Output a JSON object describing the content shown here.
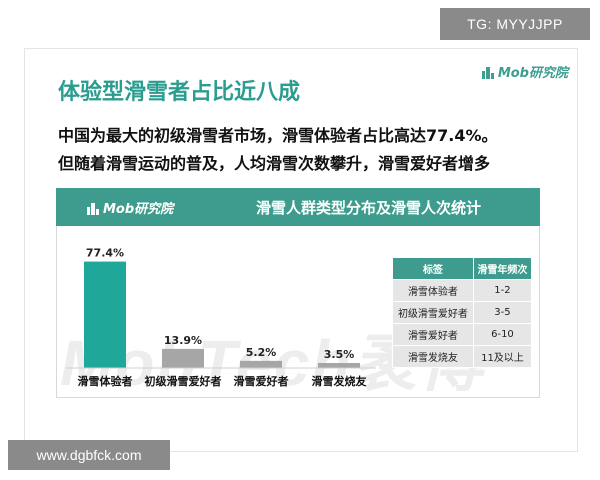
{
  "watermark_top": "TG: MYYJJPP",
  "watermark_bottom": "www.dgbfck.com",
  "logo_text": "Mob研究院",
  "background_watermark": "MobTech袤博",
  "slide": {
    "title": "体验型滑雪者占比近八成",
    "subtitle_line1": "中国为最大的初级滑雪者市场，滑雪体验者占比高达77.4%。",
    "subtitle_line2": "但随着滑雪运动的普及，人均滑雪次数攀升，滑雪爱好者增多"
  },
  "colors": {
    "accent": "#3e9c8e",
    "primary_bar": "#1fa89a",
    "secondary_bar": "#a6a6a6"
  },
  "chart_data": {
    "type": "bar",
    "title": "滑雪人群类型分布及滑雪人次统计",
    "categories": [
      "滑雪体验者",
      "初级滑雪爱好者",
      "滑雪爱好者",
      "滑雪发烧友"
    ],
    "values": [
      77.4,
      13.9,
      5.2,
      3.5
    ],
    "value_labels": [
      "77.4%",
      "13.9%",
      "5.2%",
      "3.5%"
    ],
    "unit": "%",
    "ylim": [
      0,
      80
    ],
    "grid": false,
    "legend": "none"
  },
  "table": {
    "headers": [
      "标签",
      "滑雪年频次"
    ],
    "rows": [
      [
        "滑雪体验者",
        "1-2"
      ],
      [
        "初级滑雪爱好者",
        "3-5"
      ],
      [
        "滑雪爱好者",
        "6-10"
      ],
      [
        "滑雪发烧友",
        "11及以上"
      ]
    ]
  }
}
